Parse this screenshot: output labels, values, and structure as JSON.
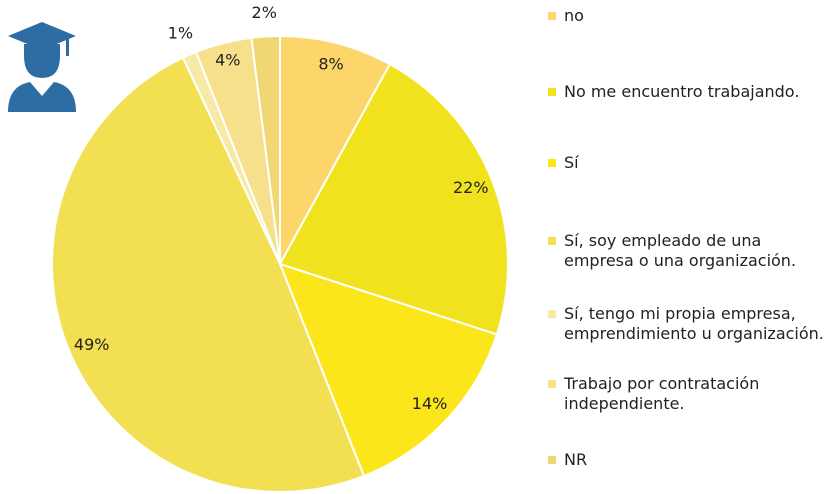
{
  "chart_data": {
    "type": "pie",
    "categories": [
      "no",
      "No me encuentro trabajando.",
      "Sí",
      "Sí, soy empleado de una empresa o una organización.",
      "Sí, tengo mi propia empresa, emprendimiento u organización.",
      "Trabajo por contratación independiente.",
      "NR"
    ],
    "values": [
      8,
      22,
      14,
      49,
      1,
      4,
      2
    ],
    "value_labels": [
      "8%",
      "22%",
      "14%",
      "49%",
      "1%",
      "4%",
      "2%"
    ],
    "colors": [
      "#fcd56b",
      "#f0e21c",
      "#fbe61b",
      "#f2df52",
      "#f6eaa6",
      "#f7e08c",
      "#f0d774"
    ]
  }
}
